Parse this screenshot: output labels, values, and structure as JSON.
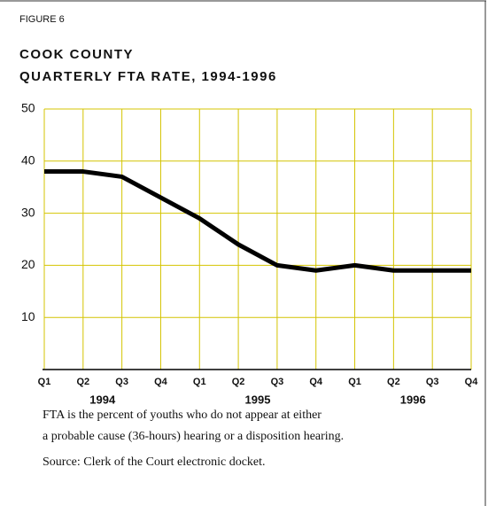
{
  "chart_data": {
    "type": "line",
    "label": "FIGURE 6",
    "title": [
      "COOK COUNTY",
      "QUARTERLY FTA RATE, 1994-1996"
    ],
    "categories": [
      "Q1",
      "Q2",
      "Q3",
      "Q4",
      "Q1",
      "Q2",
      "Q3",
      "Q4",
      "Q1",
      "Q2",
      "Q3",
      "Q4"
    ],
    "years": [
      "1994",
      "1995",
      "1996"
    ],
    "series": [
      {
        "name": "FTA rate",
        "color": "#000000",
        "values": [
          38,
          38,
          37,
          33,
          29,
          24,
          20,
          19,
          20,
          19,
          19,
          19
        ]
      }
    ],
    "ylim": [
      0,
      50
    ],
    "yticks": [
      10,
      20,
      30,
      40,
      50
    ],
    "grid": true,
    "grid_color": "#d4c400",
    "notes": [
      "FTA is the percent of youths who do not appear at either",
      "a probable cause (36-hours) hearing or a disposition hearing."
    ],
    "source": "Source: Clerk of the Court electronic docket."
  }
}
